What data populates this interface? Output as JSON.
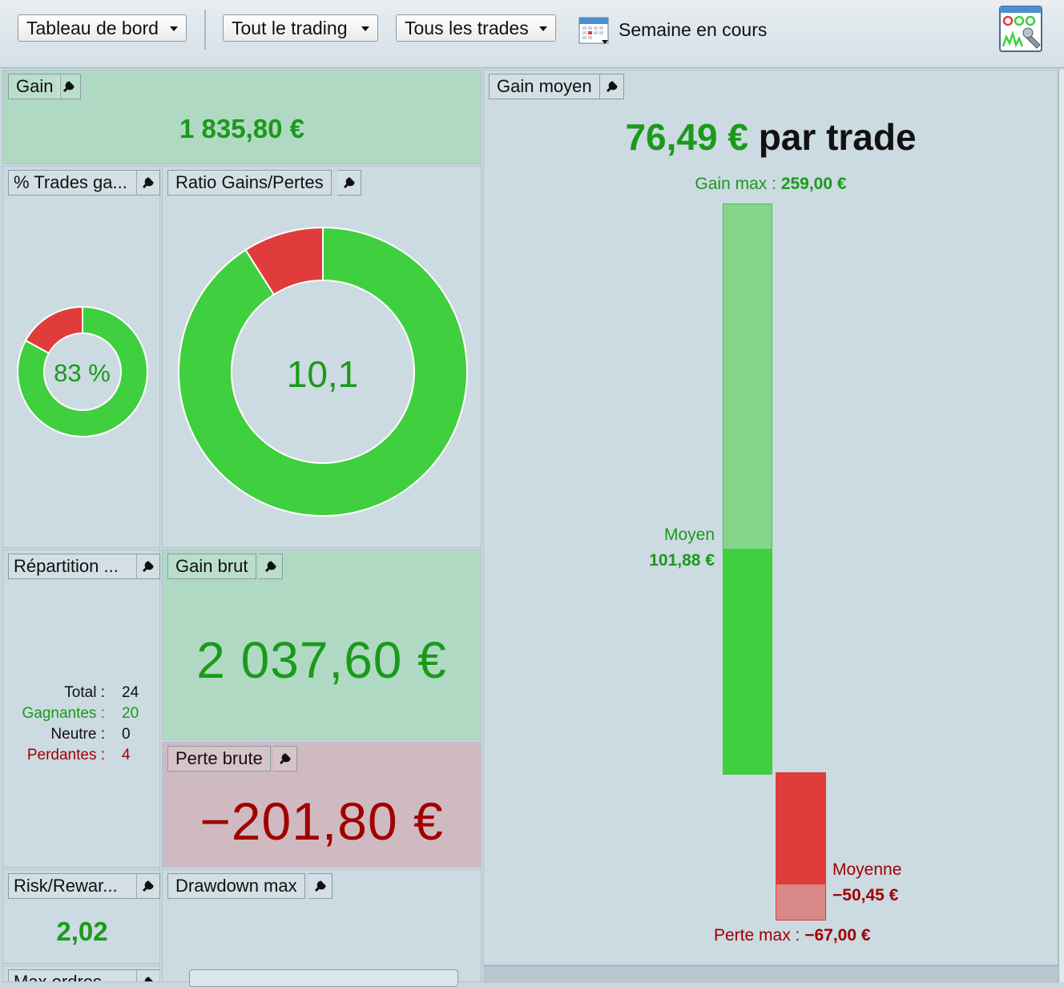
{
  "toolbar": {
    "dashboard_dropdown": "Tableau de bord",
    "trading_dropdown": "Tout le trading",
    "trades_dropdown": "Tous les trades",
    "period_label": "Semaine en cours",
    "calendar_icon": "calendar-icon",
    "settings_icon": "dashboard-settings-icon"
  },
  "gain": {
    "title": "Gain",
    "value": "1 835,80 €"
  },
  "win_rate": {
    "title": "% Trades ga...",
    "value": "83 %",
    "percent": 83
  },
  "ratio": {
    "title": "Ratio Gains/Pertes",
    "value": "10,1",
    "loss_fraction": 0.09
  },
  "repartition": {
    "title": "Répartition ...",
    "rows": [
      {
        "label": "Total :",
        "value": "24"
      },
      {
        "label": "Gagnantes :",
        "value": "20"
      },
      {
        "label": "Neutre :",
        "value": "0"
      },
      {
        "label": "Perdantes :",
        "value": "4"
      }
    ]
  },
  "gross_gain": {
    "title": "Gain brut",
    "value": "2 037,60 €"
  },
  "gross_loss": {
    "title": "Perte brute",
    "value": "−201,80 €"
  },
  "risk_reward": {
    "title": "Risk/Rewar...",
    "value": "2,02"
  },
  "drawdown": {
    "title": "Drawdown max"
  },
  "max_orders": {
    "title": "Max ordres ..."
  },
  "avg_gain": {
    "title": "Gain moyen",
    "value": "76,49 €",
    "suffix": "par trade",
    "max_gain_label": "Gain max :",
    "max_gain_value": "259,00 €",
    "avg_win_label": "Moyen",
    "avg_win_value": "101,88 €",
    "avg_loss_label": "Moyenne",
    "avg_loss_value": "−50,45 €",
    "max_loss_label": "Perte max :",
    "max_loss_value": "−67,00 €"
  },
  "colors": {
    "green": "#3fcf3f",
    "red": "#e03c3c",
    "text_green": "#1a9a1a",
    "text_red": "#a00000"
  }
}
